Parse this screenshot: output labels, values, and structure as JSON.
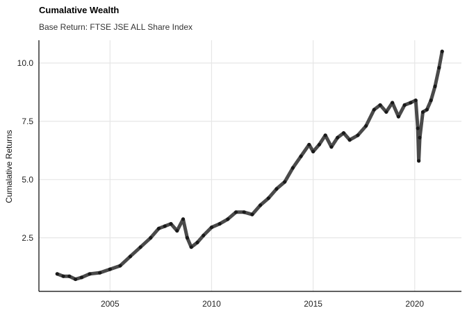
{
  "chart_data": {
    "type": "line",
    "title": "Cumalative Wealth",
    "subtitle": "Base Return: FTSE JSE ALL Share Index",
    "xlabel": "",
    "ylabel": "Cumalative Returns",
    "xlim": [
      2001.5,
      2022.3
    ],
    "ylim": [
      0.2,
      10.98
    ],
    "x_ticks": [
      2005,
      2010,
      2015,
      2020
    ],
    "y_ticks": [
      2.5,
      5.0,
      7.5,
      10.0
    ],
    "y_tick_labels": [
      "2.5",
      "5.0",
      "7.5",
      "10.0"
    ],
    "line_color": "#4a4a4a",
    "series": [
      {
        "name": "Cumalative Wealth",
        "x": [
          2002.4,
          2002.7,
          2003.0,
          2003.3,
          2003.6,
          2004.0,
          2004.5,
          2005.0,
          2005.5,
          2006.0,
          2006.5,
          2007.0,
          2007.4,
          2007.7,
          2008.0,
          2008.3,
          2008.6,
          2008.8,
          2009.0,
          2009.3,
          2009.6,
          2010.0,
          2010.4,
          2010.8,
          2011.2,
          2011.6,
          2012.0,
          2012.4,
          2012.8,
          2013.2,
          2013.6,
          2014.0,
          2014.4,
          2014.8,
          2015.0,
          2015.3,
          2015.6,
          2015.9,
          2016.2,
          2016.5,
          2016.8,
          2017.2,
          2017.6,
          2018.0,
          2018.3,
          2018.6,
          2018.9,
          2019.2,
          2019.5,
          2019.8,
          2020.05,
          2020.15,
          2020.2,
          2020.25,
          2020.4,
          2020.6,
          2020.8,
          2021.0,
          2021.2,
          2021.35
        ],
        "values": [
          0.95,
          0.85,
          0.85,
          0.72,
          0.8,
          0.95,
          1.0,
          1.15,
          1.3,
          1.7,
          2.1,
          2.5,
          2.9,
          3.0,
          3.1,
          2.8,
          3.3,
          2.5,
          2.1,
          2.3,
          2.6,
          2.95,
          3.1,
          3.3,
          3.6,
          3.6,
          3.5,
          3.9,
          4.2,
          4.6,
          4.9,
          5.5,
          6.0,
          6.5,
          6.2,
          6.5,
          6.9,
          6.4,
          6.8,
          7.0,
          6.7,
          6.9,
          7.3,
          8.0,
          8.2,
          7.9,
          8.3,
          7.7,
          8.2,
          8.3,
          8.4,
          7.2,
          5.8,
          6.8,
          7.9,
          8.0,
          8.4,
          9.0,
          9.8,
          10.5
        ]
      }
    ]
  }
}
